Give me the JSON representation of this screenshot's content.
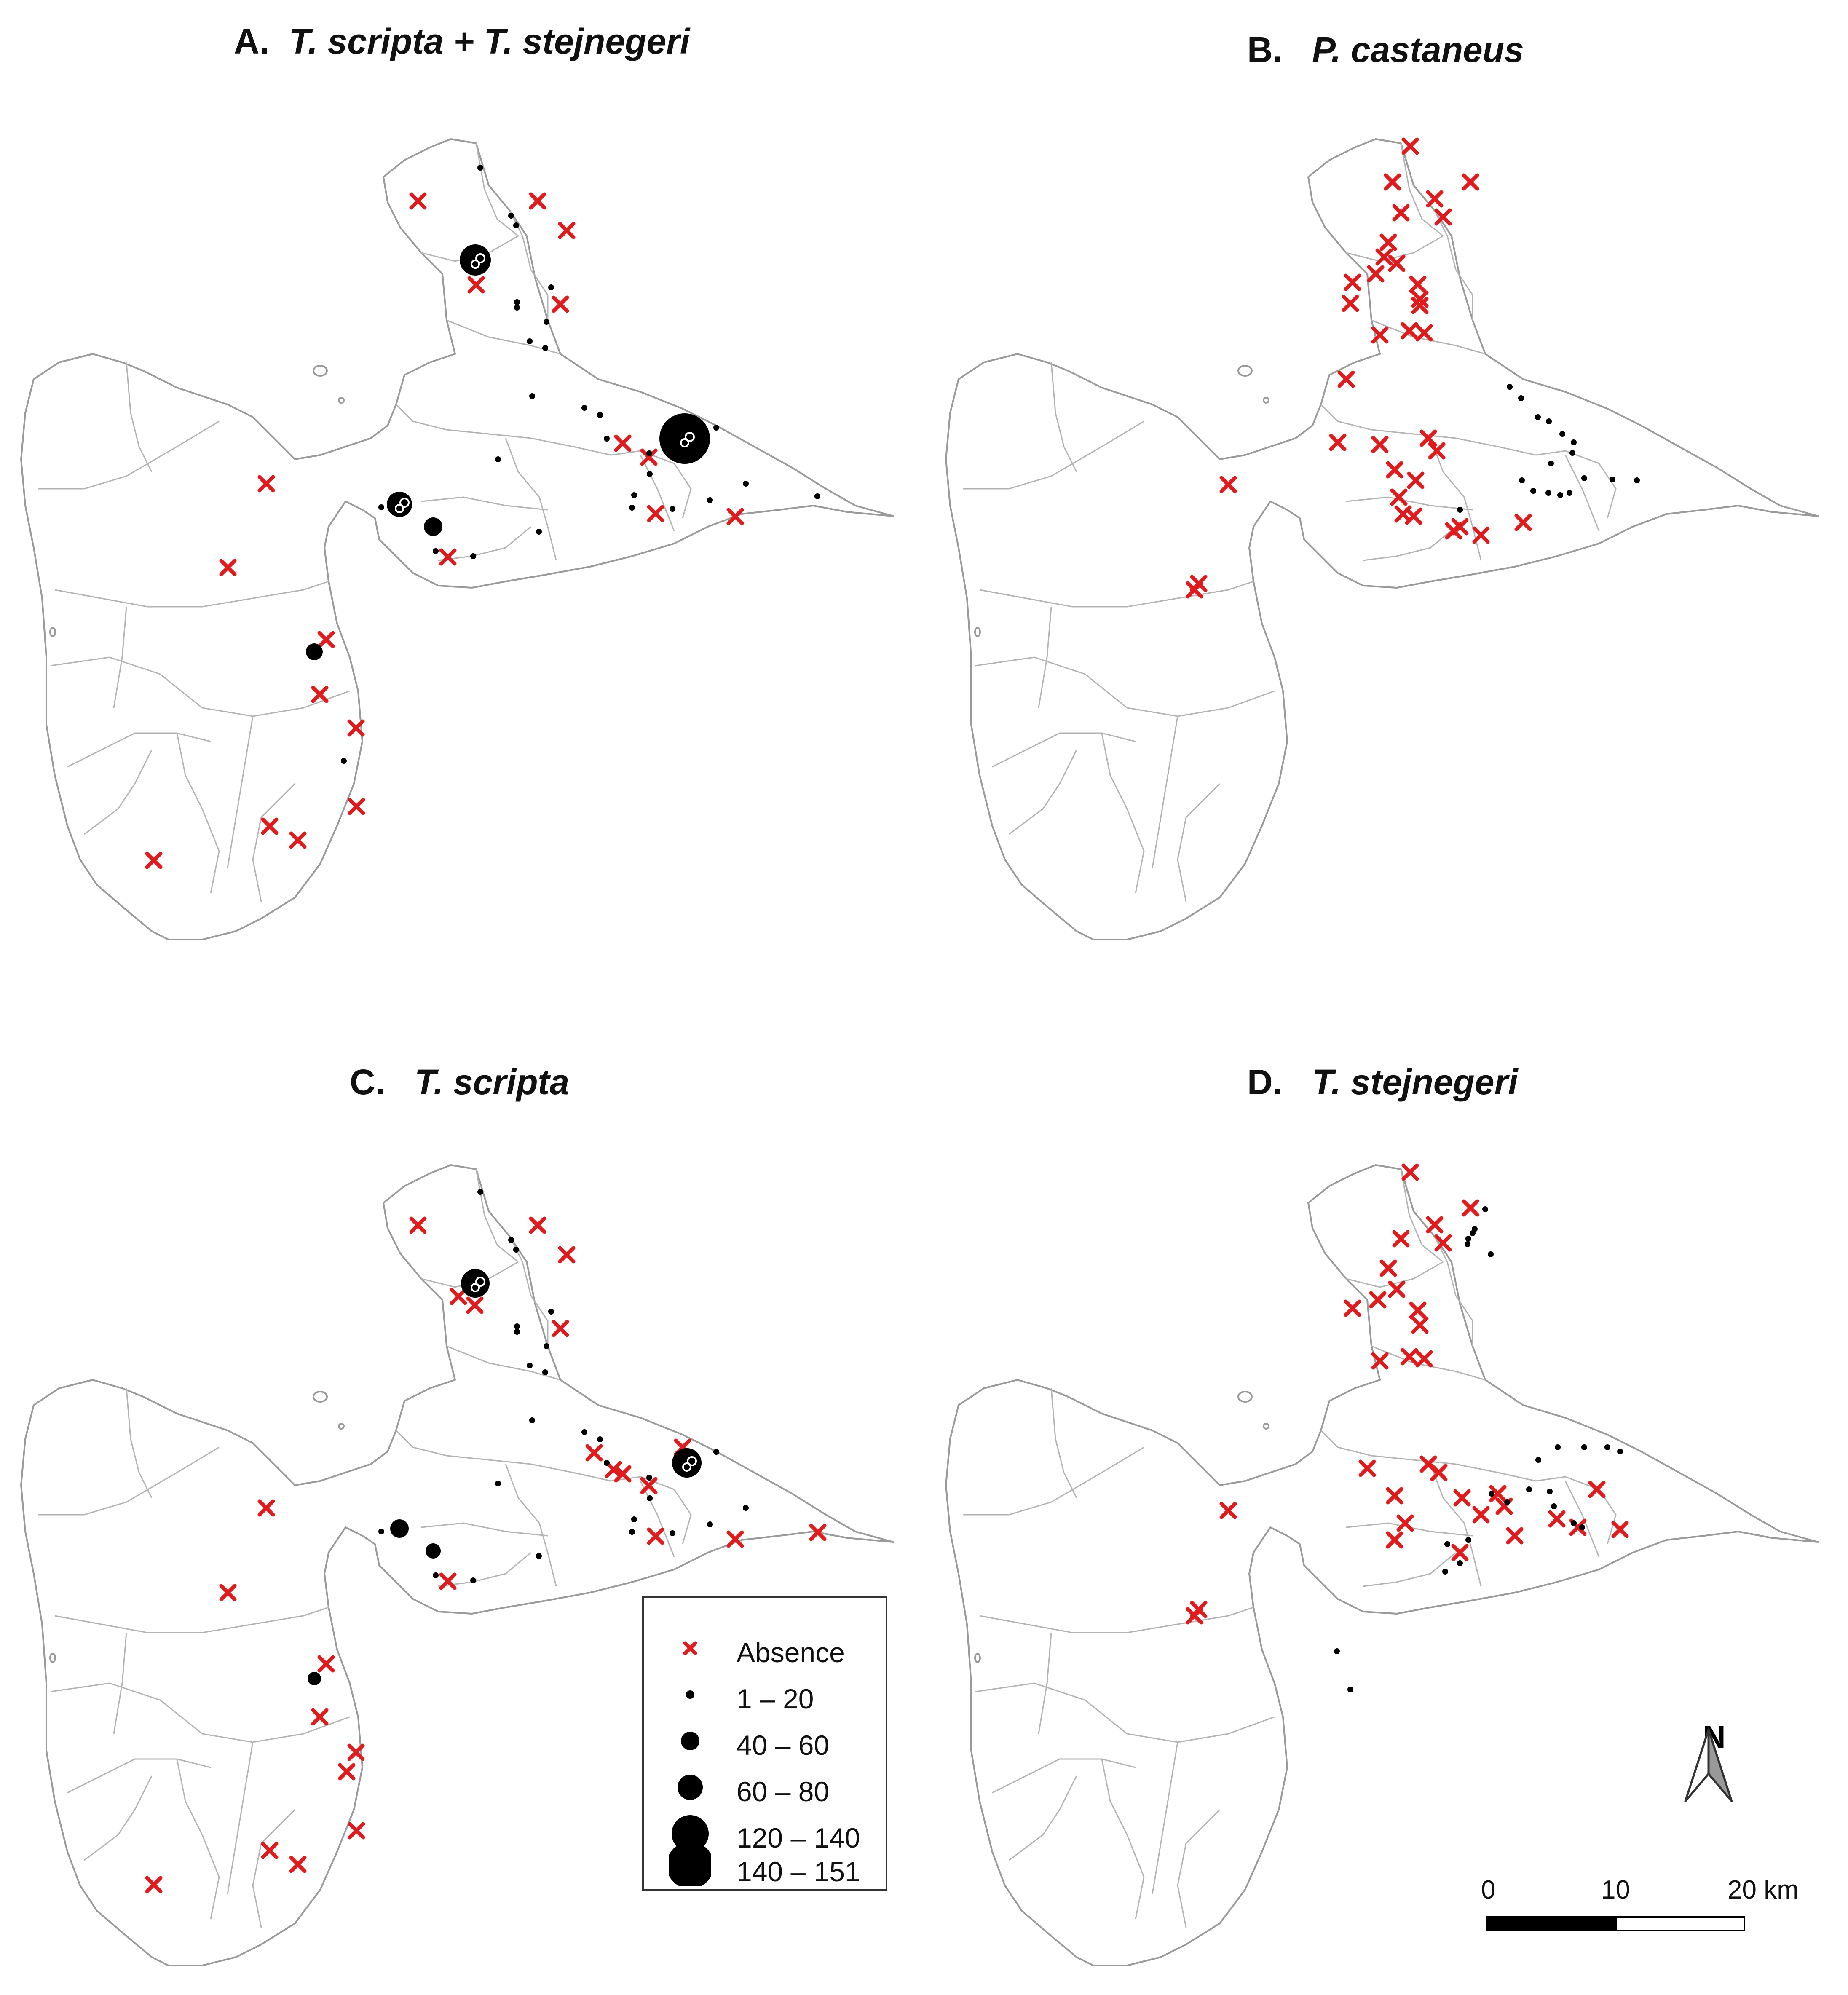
{
  "panels": [
    {
      "id": "A",
      "prefix": "A.",
      "species": "T. scripta + T. stejnegeri"
    },
    {
      "id": "B",
      "prefix": "B.",
      "species": "P. castaneus"
    },
    {
      "id": "C",
      "prefix": "C.",
      "species": "T. scripta"
    },
    {
      "id": "D",
      "prefix": "D.",
      "species": "T. stejnegeri"
    }
  ],
  "legend": {
    "absence": "Absence",
    "classes": [
      "1 – 20",
      "40 – 60",
      "60 – 80",
      "120 – 140",
      "140 – 151"
    ],
    "absence_color": "#e31a1c",
    "presence_color": "#000000"
  },
  "north_arrow": {
    "label": "N"
  },
  "scale_bar": {
    "labels": [
      "0",
      "10",
      "20 km"
    ]
  },
  "colors": {
    "coastline": "#9a9a9a",
    "boundaries": "#b3b3b3",
    "background": "#ffffff"
  }
}
